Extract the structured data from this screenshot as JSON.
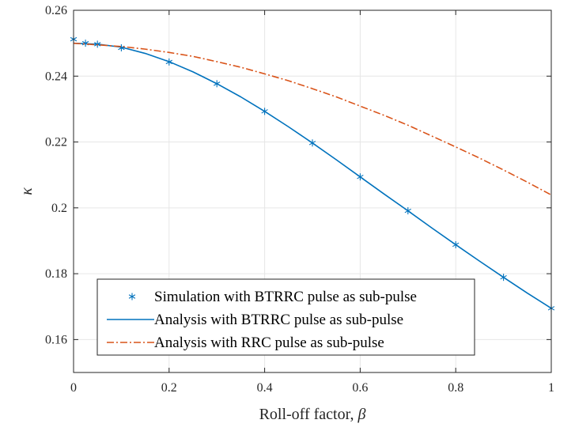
{
  "chart_data": {
    "type": "line",
    "title": "",
    "xlabel": "Roll-off factor, ",
    "xlabel_symbol": "β",
    "ylabel": "κ",
    "xlim": [
      0,
      1
    ],
    "ylim": [
      0.15,
      0.26
    ],
    "grid": true,
    "xticks": [
      0,
      0.2,
      0.4,
      0.6,
      0.8,
      1
    ],
    "xtick_labels": [
      "0",
      "0.2",
      "0.4",
      "0.6",
      "0.8",
      "1"
    ],
    "yticks": [
      0.16,
      0.18,
      0.2,
      0.22,
      0.24,
      0.26
    ],
    "ytick_labels": [
      "0.16",
      "0.18",
      "0.2",
      "0.22",
      "0.24",
      "0.26"
    ],
    "legend_position": "bottom-left",
    "series": [
      {
        "name": "Simulation with BTRRC pulse as sub-pulse",
        "style": "markers-asterisk",
        "color": "#0072bd",
        "x": [
          0,
          0.025,
          0.05,
          0.1,
          0.2,
          0.3,
          0.4,
          0.5,
          0.6,
          0.7,
          0.8,
          0.9,
          1.0
        ],
        "y": [
          0.2512,
          0.25,
          0.2497,
          0.2486,
          0.2443,
          0.2377,
          0.2293,
          0.2197,
          0.2094,
          0.1991,
          0.1888,
          0.1789,
          0.1695
        ]
      },
      {
        "name": "Analysis with BTRRC pulse as sub-pulse",
        "style": "solid",
        "color": "#0072bd",
        "x": [
          0,
          0.05,
          0.1,
          0.15,
          0.2,
          0.25,
          0.3,
          0.35,
          0.4,
          0.45,
          0.5,
          0.55,
          0.6,
          0.65,
          0.7,
          0.75,
          0.8,
          0.85,
          0.9,
          0.95,
          1.0
        ],
        "y": [
          0.25,
          0.2497,
          0.2488,
          0.2469,
          0.2444,
          0.2413,
          0.2377,
          0.2337,
          0.2293,
          0.2246,
          0.2197,
          0.2146,
          0.2094,
          0.2042,
          0.1991,
          0.1939,
          0.1888,
          0.1838,
          0.1789,
          0.1741,
          0.1695
        ]
      },
      {
        "name": "Analysis with RRC pulse as sub-pulse",
        "style": "dash-dot",
        "color": "#d95319",
        "x": [
          0,
          0.05,
          0.1,
          0.15,
          0.2,
          0.25,
          0.3,
          0.35,
          0.4,
          0.45,
          0.5,
          0.55,
          0.6,
          0.65,
          0.7,
          0.75,
          0.8,
          0.85,
          0.9,
          0.95,
          1.0
        ],
        "y": [
          0.25,
          0.2495,
          0.249,
          0.2482,
          0.2472,
          0.246,
          0.2444,
          0.2427,
          0.2407,
          0.2386,
          0.2362,
          0.2337,
          0.2309,
          0.2281,
          0.2251,
          0.2218,
          0.2185,
          0.2151,
          0.2115,
          0.2078,
          0.2039
        ]
      }
    ]
  }
}
